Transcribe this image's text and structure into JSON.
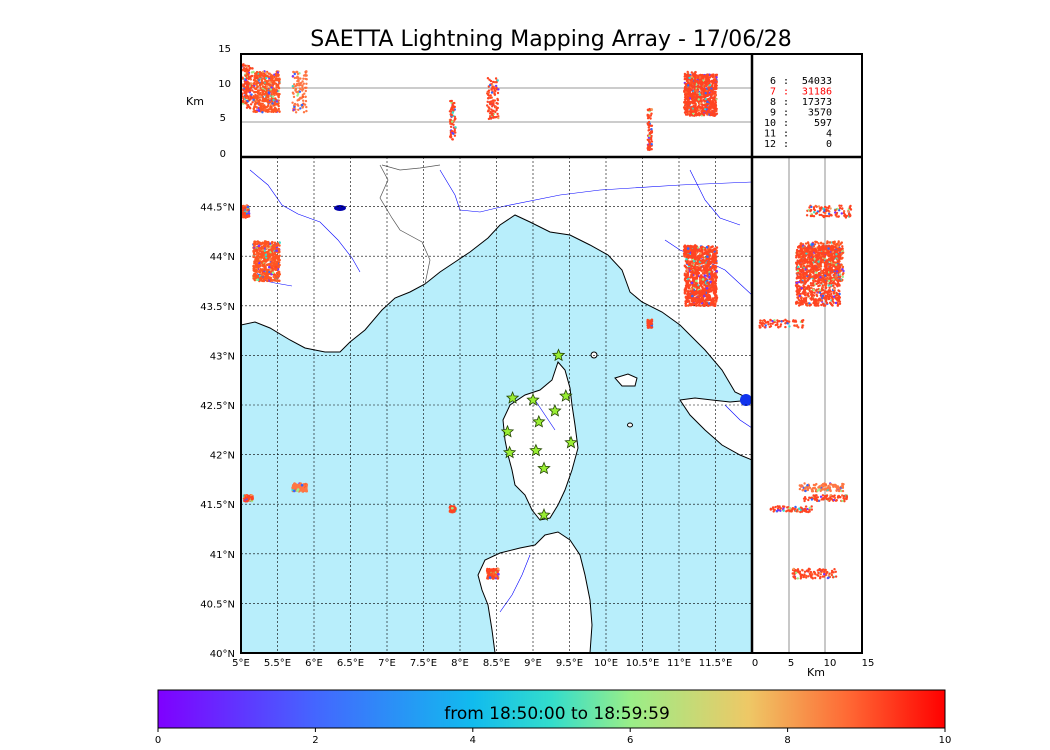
{
  "title": "SAETTA Lightning Mapping Array - 17/06/28",
  "colorbar": {
    "label": "from 18:50:00 to 18:59:59",
    "ticks": [
      "0",
      "2",
      "4",
      "6",
      "8",
      "10"
    ]
  },
  "top_panel": {
    "ylabel": "Km",
    "yticks": [
      "0",
      "5",
      "10",
      "15"
    ]
  },
  "side_panel": {
    "xlabel": "Km",
    "xticks": [
      "0",
      "5",
      "10",
      "15"
    ]
  },
  "stats": [
    {
      "n": "6",
      "count": "54033",
      "color": "#000000"
    },
    {
      "n": "7",
      "count": "31186",
      "color": "#ff0000"
    },
    {
      "n": "8",
      "count": "17373",
      "color": "#000000"
    },
    {
      "n": "9",
      "count": "3570",
      "color": "#000000"
    },
    {
      "n": "10",
      "count": "597",
      "color": "#000000"
    },
    {
      "n": "11",
      "count": "4",
      "color": "#000000"
    },
    {
      "n": "12",
      "count": "0",
      "color": "#000000"
    }
  ],
  "map": {
    "lon_ticks": [
      "5°E",
      "5.5°E",
      "6°E",
      "6.5°E",
      "7°E",
      "7.5°E",
      "8°E",
      "8.5°E",
      "9°E",
      "9.5°E",
      "10°E",
      "10.5°E",
      "11°E",
      "11.5°E"
    ],
    "lat_ticks": [
      "40°N",
      "40.5°N",
      "41°N",
      "41.5°N",
      "42°N",
      "42.5°N",
      "43°N",
      "43.5°N",
      "44°N",
      "44.5°N"
    ],
    "sea_color": "#b8eefb",
    "land_color": "#ffffff",
    "river_color": "#0000ff",
    "station_color": "#99ee33"
  },
  "chart_data": {
    "type": "scatter",
    "title": "SAETTA Lightning Mapping Array - 17/06/28",
    "x_range_lon": [
      5,
      12
    ],
    "y_range_lat": [
      40,
      45
    ],
    "alt_range_km": [
      0,
      15
    ],
    "color_scale_minutes": [
      0,
      10
    ],
    "stations": [
      {
        "lon": 9.35,
        "lat": 43.0
      },
      {
        "lon": 8.72,
        "lat": 42.57
      },
      {
        "lon": 9.0,
        "lat": 42.55
      },
      {
        "lon": 9.45,
        "lat": 42.59
      },
      {
        "lon": 9.08,
        "lat": 42.33
      },
      {
        "lon": 9.3,
        "lat": 42.44
      },
      {
        "lon": 8.65,
        "lat": 42.23
      },
      {
        "lon": 9.52,
        "lat": 42.12
      },
      {
        "lon": 8.68,
        "lat": 42.02
      },
      {
        "lon": 9.04,
        "lat": 42.04
      },
      {
        "lon": 9.15,
        "lat": 41.86
      },
      {
        "lon": 9.15,
        "lat": 41.39
      }
    ],
    "clusters": [
      {
        "lon": 5.35,
        "lat": 43.95,
        "alt": 9.5,
        "spread_lon": 0.18,
        "spread_lat": 0.2,
        "color": "#ff5522"
      },
      {
        "lon": 5.05,
        "lat": 44.45,
        "alt": 10.5,
        "spread_lon": 0.06,
        "spread_lat": 0.06,
        "color": "#ff4422"
      },
      {
        "lon": 11.3,
        "lat": 43.8,
        "alt": 9.0,
        "spread_lon": 0.22,
        "spread_lat": 0.3,
        "color": "#ff4422"
      },
      {
        "lon": 11.15,
        "lat": 44.05,
        "alt": 9.5,
        "spread_lon": 0.08,
        "spread_lat": 0.06,
        "color": "#ff4422"
      },
      {
        "lon": 8.45,
        "lat": 40.8,
        "alt": 8.5,
        "spread_lon": 0.08,
        "spread_lat": 0.05,
        "color": "#ff4422"
      },
      {
        "lon": 7.9,
        "lat": 41.45,
        "alt": 5.5,
        "spread_lon": 0.04,
        "spread_lat": 0.03,
        "color": "#ff4422"
      },
      {
        "lon": 5.1,
        "lat": 41.56,
        "alt": 10.0,
        "spread_lon": 0.06,
        "spread_lat": 0.03,
        "color": "#ff4422"
      },
      {
        "lon": 5.8,
        "lat": 41.67,
        "alt": 9.5,
        "spread_lon": 0.1,
        "spread_lat": 0.04,
        "color": "#ff7744"
      },
      {
        "lon": 10.6,
        "lat": 43.32,
        "alt": 4.0,
        "spread_lon": 0.03,
        "spread_lat": 0.04,
        "color": "#ff4422"
      }
    ]
  }
}
